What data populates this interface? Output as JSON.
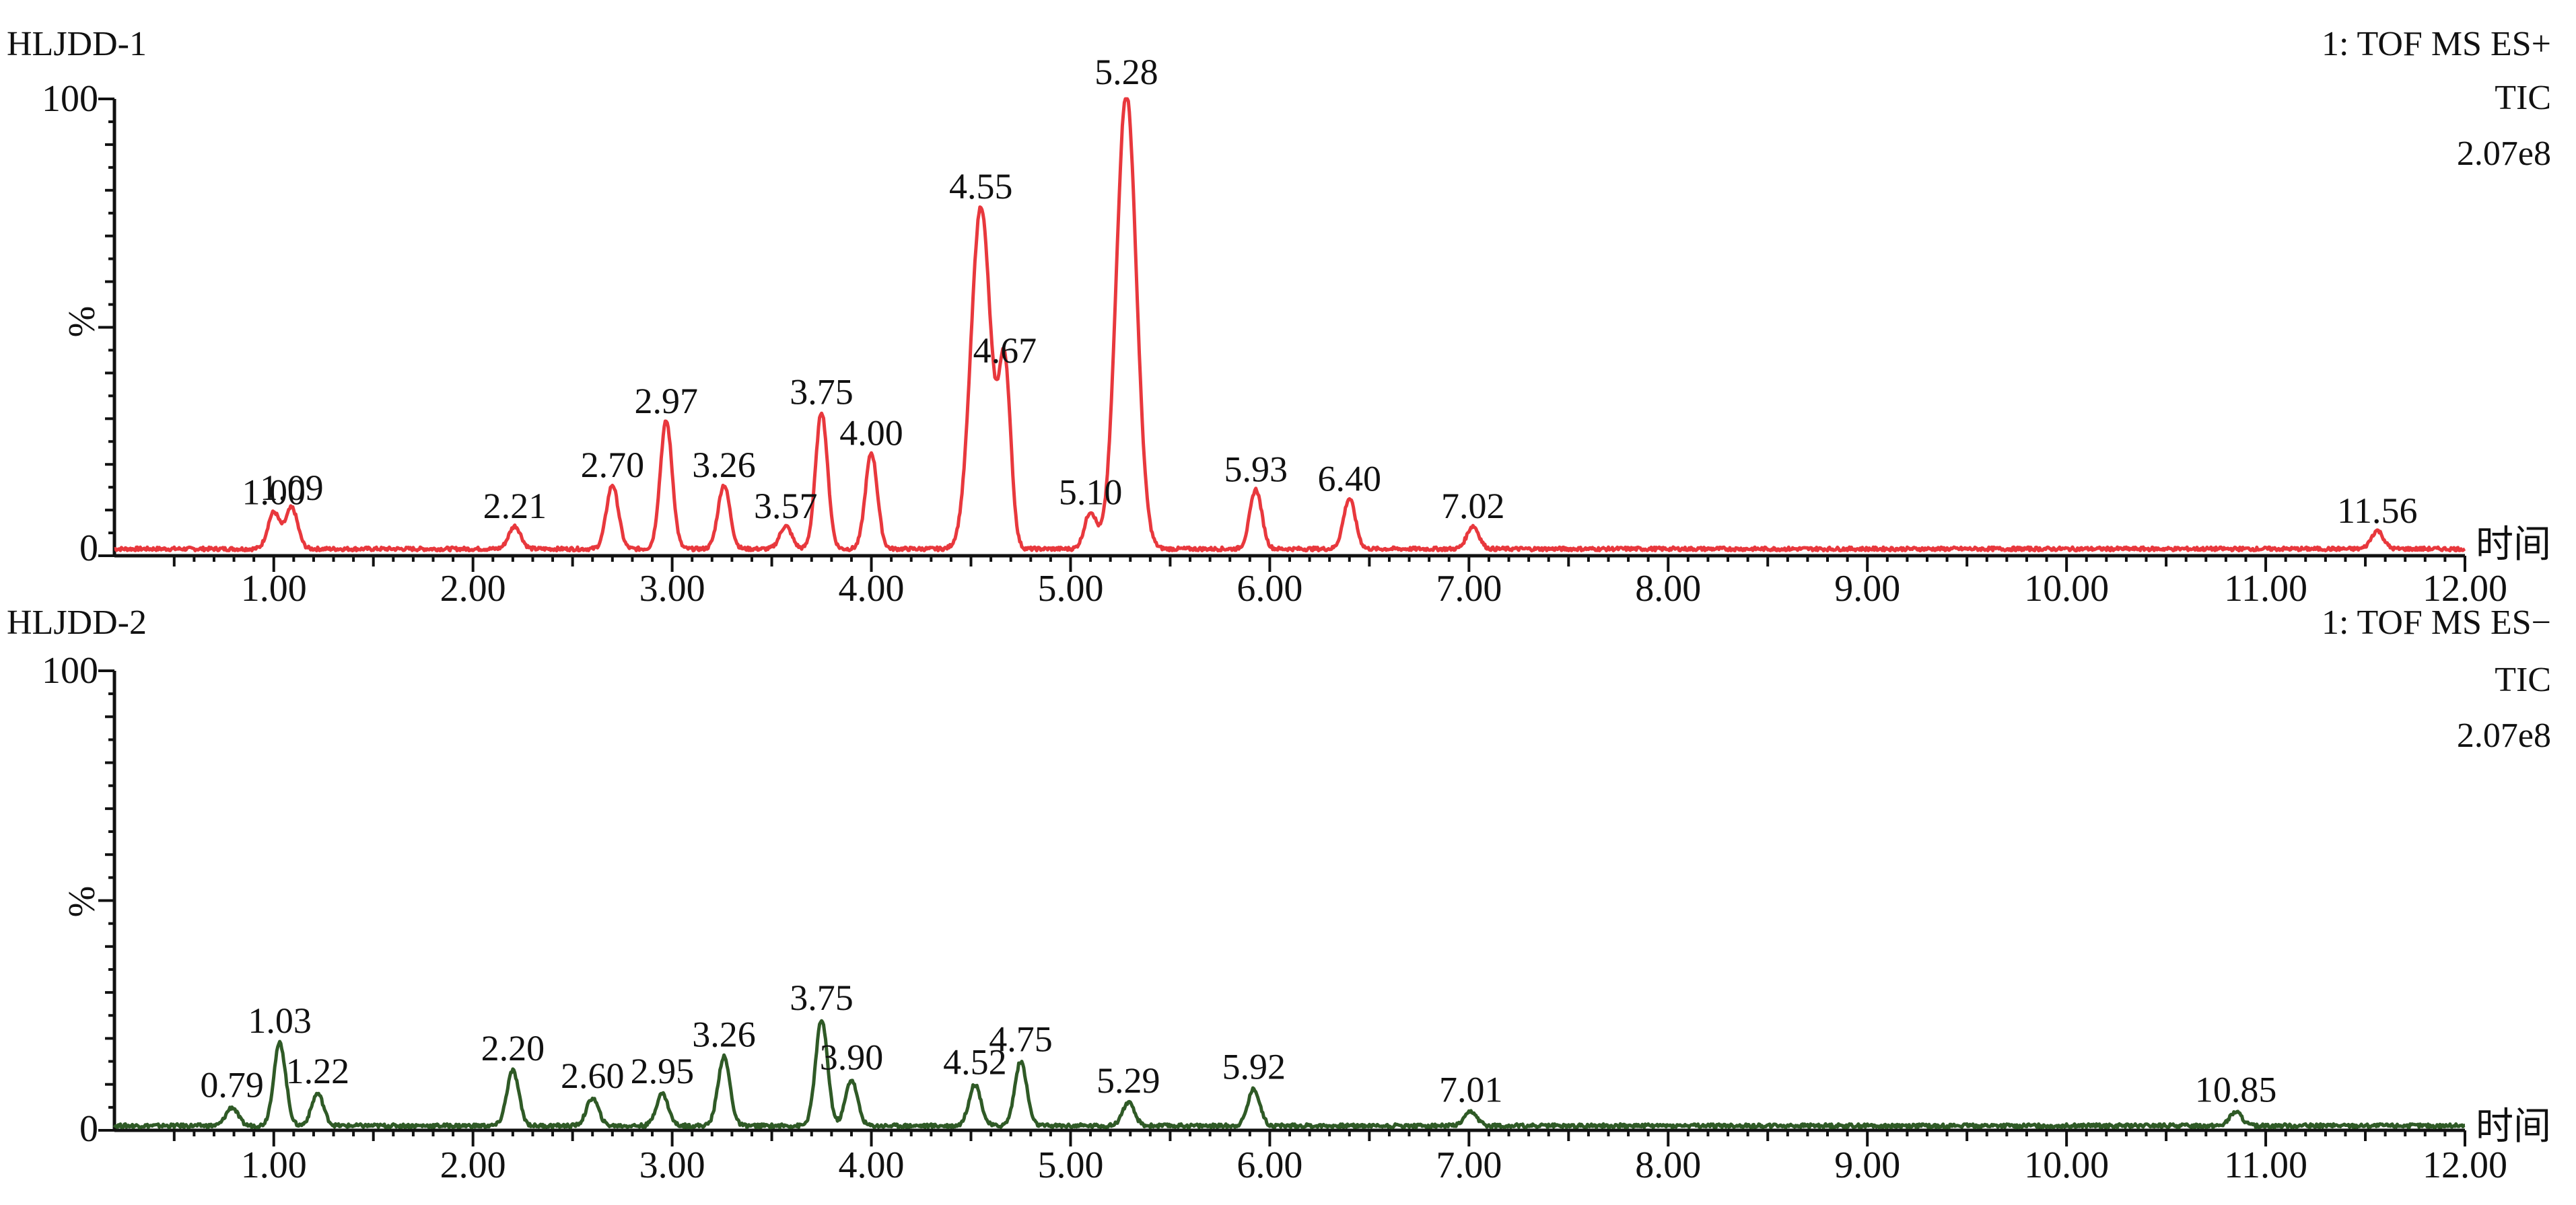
{
  "chart_data": [
    {
      "type": "line",
      "sample_name": "HLJDD-1",
      "header_lines": [
        "1: TOF MS ES+",
        "TIC",
        "2.07e8"
      ],
      "ylabel": "%",
      "xlabel": "时间",
      "xlim": [
        0.2,
        12.0
      ],
      "ylim": [
        0,
        100
      ],
      "x_ticks": [
        "1.00",
        "2.00",
        "3.00",
        "4.00",
        "5.00",
        "6.00",
        "7.00",
        "8.00",
        "9.00",
        "10.00",
        "11.00",
        "12.00"
      ],
      "y_ticks": [
        "0",
        "100"
      ],
      "color": "#e8383d",
      "baseline": 1.5,
      "peaks": [
        {
          "x": 1.0,
          "y": 8,
          "label": "1.00"
        },
        {
          "x": 1.09,
          "y": 9,
          "label": "1.09"
        },
        {
          "x": 2.21,
          "y": 5,
          "label": "2.21"
        },
        {
          "x": 2.7,
          "y": 14,
          "label": "2.70"
        },
        {
          "x": 2.97,
          "y": 28,
          "label": "2.97"
        },
        {
          "x": 3.26,
          "y": 14,
          "label": "3.26"
        },
        {
          "x": 3.57,
          "y": 5,
          "label": "3.57"
        },
        {
          "x": 3.75,
          "y": 30,
          "label": "3.75"
        },
        {
          "x": 4.0,
          "y": 21,
          "label": "4.00"
        },
        {
          "x": 4.55,
          "y": 75,
          "label": "4.55"
        },
        {
          "x": 4.67,
          "y": 39,
          "label": "4.67"
        },
        {
          "x": 5.1,
          "y": 8,
          "label": "5.10"
        },
        {
          "x": 5.28,
          "y": 100,
          "label": "5.28"
        },
        {
          "x": 5.93,
          "y": 13,
          "label": "5.93"
        },
        {
          "x": 6.4,
          "y": 11,
          "label": "6.40"
        },
        {
          "x": 7.02,
          "y": 5,
          "label": "7.02"
        },
        {
          "x": 11.56,
          "y": 4,
          "label": "11.56"
        }
      ]
    },
    {
      "type": "line",
      "sample_name": "HLJDD-2",
      "header_lines": [
        "1: TOF MS ES−",
        "TIC",
        "2.07e8"
      ],
      "ylabel": "%",
      "xlabel": "时间",
      "xlim": [
        0.2,
        12.0
      ],
      "ylim": [
        0,
        100
      ],
      "x_ticks": [
        "1.00",
        "2.00",
        "3.00",
        "4.00",
        "5.00",
        "6.00",
        "7.00",
        "8.00",
        "9.00",
        "10.00",
        "11.00",
        "12.00"
      ],
      "y_ticks": [
        "0",
        "100"
      ],
      "color": "#2f5a26",
      "baseline": 1,
      "peaks": [
        {
          "x": 0.79,
          "y": 4,
          "label": "0.79"
        },
        {
          "x": 1.03,
          "y": 18,
          "label": "1.03"
        },
        {
          "x": 1.22,
          "y": 7,
          "label": "1.22"
        },
        {
          "x": 2.2,
          "y": 12,
          "label": "2.20"
        },
        {
          "x": 2.6,
          "y": 6,
          "label": "2.60"
        },
        {
          "x": 2.95,
          "y": 7,
          "label": "2.95"
        },
        {
          "x": 3.26,
          "y": 15,
          "label": "3.26"
        },
        {
          "x": 3.75,
          "y": 23,
          "label": "3.75"
        },
        {
          "x": 3.9,
          "y": 10,
          "label": "3.90"
        },
        {
          "x": 4.52,
          "y": 9,
          "label": "4.52"
        },
        {
          "x": 4.75,
          "y": 14,
          "label": "4.75"
        },
        {
          "x": 5.29,
          "y": 5,
          "label": "5.29"
        },
        {
          "x": 5.92,
          "y": 8,
          "label": "5.92"
        },
        {
          "x": 7.01,
          "y": 3,
          "label": "7.01"
        },
        {
          "x": 10.85,
          "y": 3,
          "label": "10.85"
        }
      ]
    }
  ]
}
